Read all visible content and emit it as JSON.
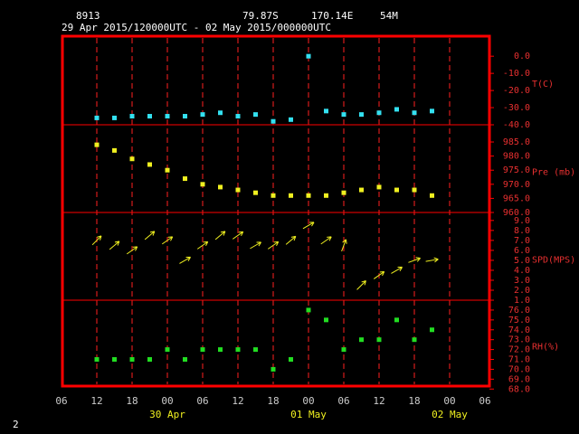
{
  "header": {
    "station": "8913",
    "lat": "79.87S",
    "lon": "170.14E",
    "elev": "54M",
    "period": "29 Apr 2015/120000UTC - 02 May 2015/000000UTC"
  },
  "time_axis": {
    "xlim": [
      "2015-04-29T06:00",
      "2015-05-02T06:00"
    ],
    "xticks": [
      {
        "value": "2015-04-29T06:00",
        "label": "06"
      },
      {
        "value": "2015-04-29T12:00",
        "label": "12"
      },
      {
        "value": "2015-04-29T18:00",
        "label": "18"
      },
      {
        "value": "2015-04-30T00:00",
        "label": "00"
      },
      {
        "value": "2015-04-30T06:00",
        "label": "06"
      },
      {
        "value": "2015-04-30T12:00",
        "label": "12"
      },
      {
        "value": "2015-04-30T18:00",
        "label": "18"
      },
      {
        "value": "2015-05-01T00:00",
        "label": "00"
      },
      {
        "value": "2015-05-01T06:00",
        "label": "06"
      },
      {
        "value": "2015-05-01T12:00",
        "label": "12"
      },
      {
        "value": "2015-05-01T18:00",
        "label": "18"
      },
      {
        "value": "2015-05-02T00:00",
        "label": "00"
      },
      {
        "value": "2015-05-02T06:00",
        "label": "06"
      }
    ],
    "date_labels": [
      {
        "value": "2015-04-30T00:00",
        "label": "30 Apr"
      },
      {
        "value": "2015-05-01T00:00",
        "label": "01 May"
      },
      {
        "value": "2015-05-02T00:00",
        "label": "02 May"
      }
    ],
    "x": [
      "2015-04-29T12:00",
      "2015-04-29T15:00",
      "2015-04-29T18:00",
      "2015-04-29T21:00",
      "2015-04-30T00:00",
      "2015-04-30T03:00",
      "2015-04-30T06:00",
      "2015-04-30T09:00",
      "2015-04-30T12:00",
      "2015-04-30T15:00",
      "2015-04-30T18:00",
      "2015-04-30T21:00",
      "2015-05-01T00:00",
      "2015-05-01T03:00",
      "2015-05-01T06:00",
      "2015-05-01T09:00",
      "2015-05-01T12:00",
      "2015-05-01T15:00",
      "2015-05-01T18:00",
      "2015-05-01T21:00"
    ]
  },
  "chart_data": [
    {
      "type": "scatter",
      "y_label": "T(C)",
      "color": "#33e0f0",
      "ylim": [
        -40,
        11.7
      ],
      "yticks": [
        {
          "value": 0,
          "label": "0.0"
        },
        {
          "value": -10,
          "label": "-10.0"
        },
        {
          "value": -20,
          "label": "-20.0"
        },
        {
          "value": -30,
          "label": "-30.0"
        },
        {
          "value": -40,
          "label": "-40.0"
        }
      ],
      "values": [
        -36,
        -36,
        -35,
        -35,
        -35,
        -35,
        -34,
        -33,
        -35,
        -34,
        -38,
        -37,
        0,
        -32,
        -34,
        -34,
        -33,
        -31,
        -33,
        -32
      ]
    },
    {
      "type": "scatter",
      "y_label": "Pre (mb)",
      "color": "#f0f020",
      "ylim": [
        960,
        991.1
      ],
      "yticks": [
        {
          "value": 960,
          "label": "960.0"
        },
        {
          "value": 965,
          "label": "965.0"
        },
        {
          "value": 970,
          "label": "970.0"
        },
        {
          "value": 975,
          "label": "975.0"
        },
        {
          "value": 980,
          "label": "980.0"
        },
        {
          "value": 985,
          "label": "985.0"
        }
      ],
      "values": [
        984,
        982,
        979,
        977,
        975,
        972,
        970,
        969,
        968,
        967,
        966,
        966,
        966,
        966,
        967,
        968,
        969,
        968,
        968,
        966
      ]
    },
    {
      "type": "vector",
      "y_label": "SPD(MPS)",
      "color": "#f0f020",
      "ylim": [
        1,
        9.8
      ],
      "yticks": [
        {
          "value": 1,
          "label": "1.0"
        },
        {
          "value": 2,
          "label": "2.0"
        },
        {
          "value": 3,
          "label": "3.0"
        },
        {
          "value": 4,
          "label": "4.0"
        },
        {
          "value": 5,
          "label": "5.0"
        },
        {
          "value": 6,
          "label": "6.0"
        },
        {
          "value": 7,
          "label": "7.0"
        },
        {
          "value": 8,
          "label": "8.0"
        },
        {
          "value": 9,
          "label": "9.0"
        }
      ],
      "values": [
        7,
        6.5,
        6,
        7.5,
        7,
        5,
        6.5,
        7.5,
        7.5,
        6.5,
        6.5,
        7,
        8.5,
        7,
        6.5,
        2.5,
        3.5,
        4,
        5,
        5
      ],
      "directions": [
        45,
        50,
        55,
        50,
        55,
        60,
        55,
        50,
        55,
        60,
        55,
        50,
        60,
        55,
        20,
        45,
        55,
        60,
        70,
        80
      ]
    },
    {
      "type": "scatter",
      "y_label": "RH(%)",
      "color": "#22dd22",
      "ylim": [
        68.3,
        77
      ],
      "yticks": [
        {
          "value": 68,
          "label": "68.0"
        },
        {
          "value": 69,
          "label": "69.0"
        },
        {
          "value": 70,
          "label": "70.0"
        },
        {
          "value": 71,
          "label": "71.0"
        },
        {
          "value": 72,
          "label": "72.0"
        },
        {
          "value": 73,
          "label": "73.0"
        },
        {
          "value": 74,
          "label": "74.0"
        },
        {
          "value": 75,
          "label": "75.0"
        },
        {
          "value": 76,
          "label": "76.0"
        }
      ],
      "values": [
        71,
        71,
        71,
        71,
        72,
        71,
        72,
        72,
        72,
        72,
        70,
        71,
        76,
        75,
        72,
        73,
        73,
        75,
        73,
        74
      ]
    }
  ],
  "page_number": "2"
}
